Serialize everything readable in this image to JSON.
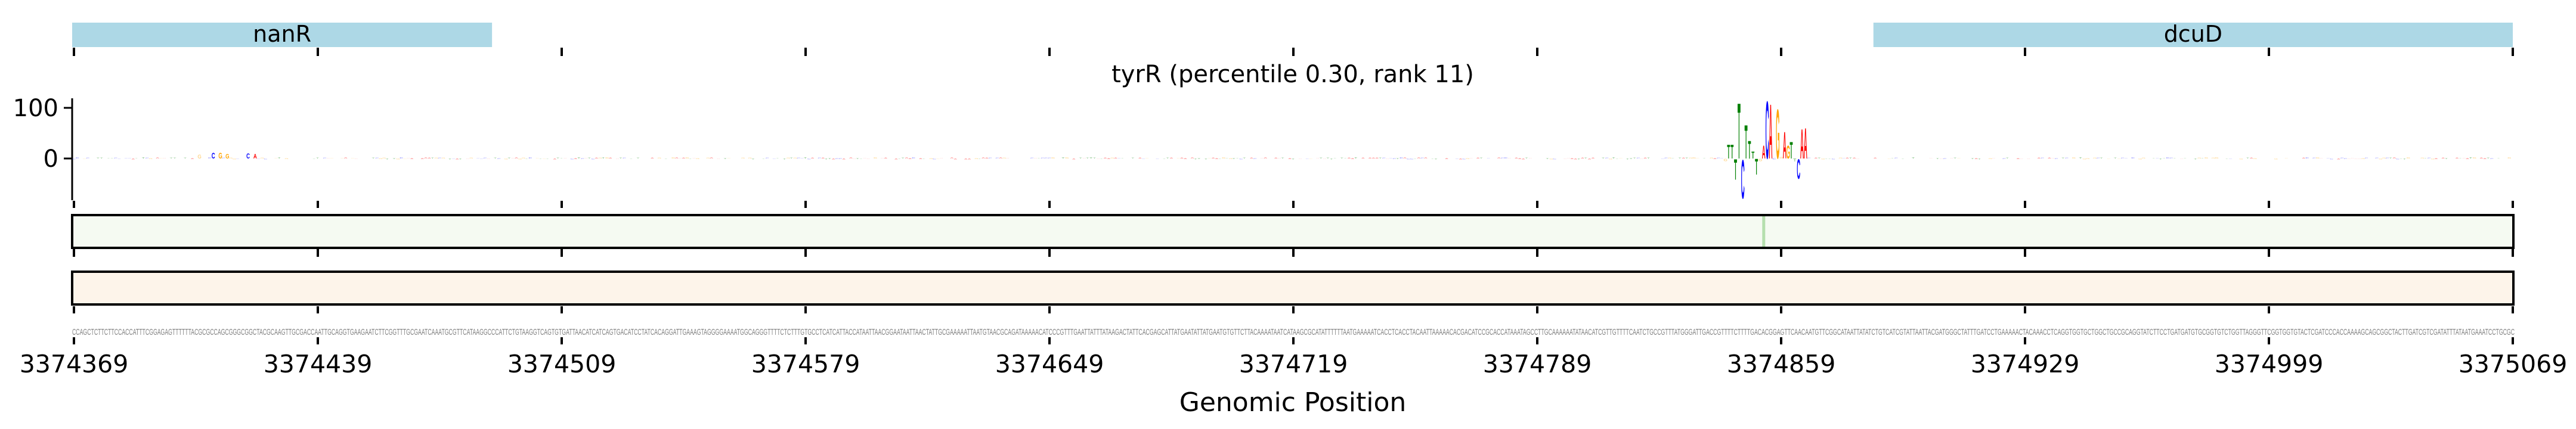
{
  "chart_data": {
    "type": "sequence-logo",
    "title": "tyrR (percentile 0.30, rank 11)",
    "xlabel": "Genomic Position",
    "ylabel": "",
    "region_start": 3374369,
    "region_end": 3375069,
    "x_ticks": [
      "3374369",
      "3374439",
      "3374509",
      "3374579",
      "3374649",
      "3374719",
      "3374789",
      "3374859",
      "3374929",
      "3374999",
      "3375069"
    ],
    "y_ticks": [
      "100",
      "0"
    ],
    "ylim": [
      -81,
      119
    ],
    "genes": [
      {
        "name": "nanR",
        "start": 3374368,
        "end": 3374489
      },
      {
        "name": "dcuD",
        "start": 3374886,
        "end": 3375069
      }
    ],
    "gene_color": "#add8e6",
    "base_colors": {
      "A": "#ff0000",
      "C": "#0000ff",
      "G": "#ffa500",
      "T": "#008000"
    },
    "sequence": "CCAGCTCTTCTTCCACCATTTCGGAGAGTTTTTTACGCGCCAGCGGGCGGCTACGCAAGTTGCGACCAATTGCAGGTGAAGAATCTTCGGTTTGCGAATCAAATGCGTTCATAAGGCCCATTCTGTAAGGTCAGTGTGATTAACATCATCAGTGACATCCTATCACAGGATTGAAAGTAGGGGAAAATGGCAGGGTTTTCTCTTTGTGCCTCATCATTACCATAATTAACGGAATAATTAACTATTGCGAAAAATTAATGTAACGCAGATAAAAACATCCCGTTTGAATTATTTATAAGACTATTCACGAGCATTATGAATATTATGAATGTGTTCTTACAAAATAATCATAAGCGCATATTTTTTAATGAAAAATCACCTCACCTACAATTAAAAACACGACATCCGCACCATAAATAGCCTTGCAAAAAATATAACATCGTTGTTTTCAATCTGCCGTTTATGGGATTGACCGTTTTCTTTTGACACGGAGTTCAACAATGTTCGGCATAATTATATCTGTCATCGTATTAATTACGATGGGCTATTTGATCCTGAAAAACTACAAACCTCAGGTGGTGCTGGCTGCCGCAGGTATCTTCCTGATGATGTGCGGTGTCTGGTTAGGGTTCGGTGGTGTACTCGATCCCACCAAAAGCAGCGGCTACTTGATCGTCGATATTTATAATGAAATCCTGCGC",
    "attribution_peaks": [
      {
        "pos": 474,
        "value": -5
      },
      {
        "pos": 475,
        "value": 28
      },
      {
        "pos": 476,
        "value": 28
      },
      {
        "pos": 477,
        "value": -42
      },
      {
        "pos": 478,
        "value": 113
      },
      {
        "pos": 479,
        "value": -79
      },
      {
        "pos": 480,
        "value": 68
      },
      {
        "pos": 481,
        "value": 36
      },
      {
        "pos": 482,
        "value": 14
      },
      {
        "pos": 483,
        "value": -32
      },
      {
        "pos": 484,
        "value": -5
      },
      {
        "pos": 485,
        "value": 27
      },
      {
        "pos": 486,
        "value": 117
      },
      {
        "pos": 487,
        "value": 111
      },
      {
        "pos": 488,
        "value": -2
      },
      {
        "pos": 489,
        "value": 101
      },
      {
        "pos": 490,
        "value": 3
      },
      {
        "pos": 491,
        "value": 54
      },
      {
        "pos": 492,
        "value": 27
      },
      {
        "pos": 493,
        "value": 34
      },
      {
        "pos": 494,
        "value": -6
      },
      {
        "pos": 495,
        "value": -40
      },
      {
        "pos": 496,
        "value": 60
      },
      {
        "pos": 497,
        "value": 62
      },
      {
        "pos": 36,
        "value": 8
      },
      {
        "pos": 40,
        "value": 12
      },
      {
        "pos": 42,
        "value": 12
      },
      {
        "pos": 44,
        "value": 9
      },
      {
        "pos": 50,
        "value": 10
      },
      {
        "pos": 52,
        "value": 9
      }
    ],
    "track1_highlight_pos": 485,
    "track1_color": "#f5faf2",
    "track1_highlight_color": "#b5dfae",
    "track2_color": "#fdf4ea"
  }
}
